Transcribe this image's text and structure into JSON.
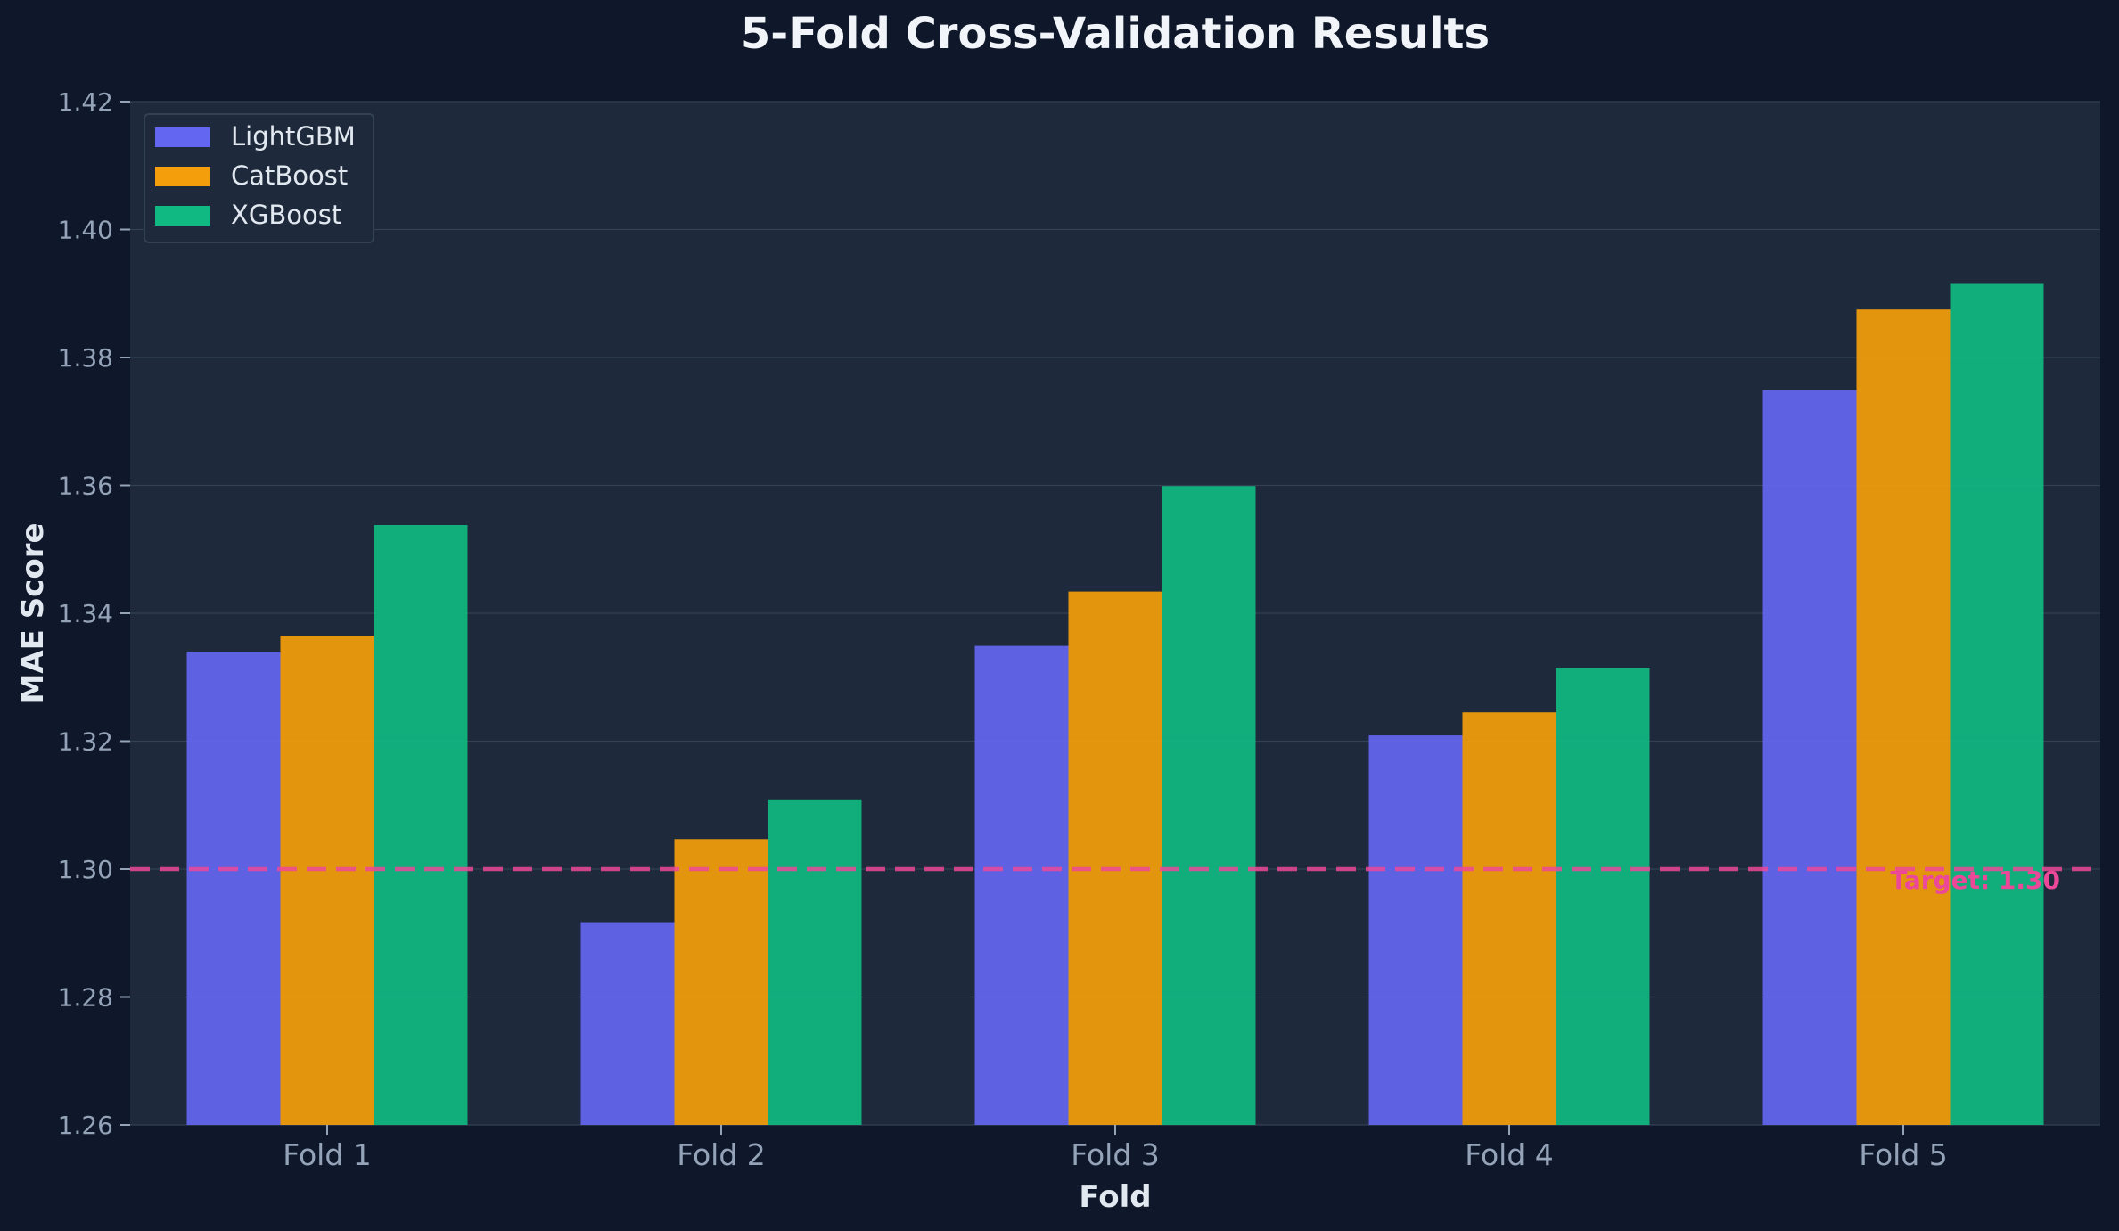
{
  "chart_data": {
    "type": "bar",
    "title": "5-Fold Cross-Validation Results",
    "xlabel": "Fold",
    "ylabel": "MAE Score",
    "categories": [
      "Fold 1",
      "Fold 2",
      "Fold 3",
      "Fold 4",
      "Fold 5"
    ],
    "series": [
      {
        "name": "LightGBM",
        "color": "#6366f1",
        "values": [
          1.334,
          1.2917,
          1.3349,
          1.3209,
          1.3749
        ]
      },
      {
        "name": "CatBoost",
        "color": "#f59e0b",
        "values": [
          1.3365,
          1.3047,
          1.3434,
          1.3245,
          1.3875
        ]
      },
      {
        "name": "XGBoost",
        "color": "#10b981",
        "values": [
          1.3538,
          1.3109,
          1.3599,
          1.3315,
          1.3915
        ]
      }
    ],
    "ylim": [
      1.26,
      1.42
    ],
    "yticks": [
      "1.26",
      "1.28",
      "1.30",
      "1.32",
      "1.34",
      "1.36",
      "1.38",
      "1.40",
      "1.42"
    ],
    "grid": true,
    "legend_position": "top-left",
    "reference_line": {
      "value": 1.3,
      "label": "Target: 1.30",
      "color": "#ec4899",
      "style": "dashed"
    }
  }
}
